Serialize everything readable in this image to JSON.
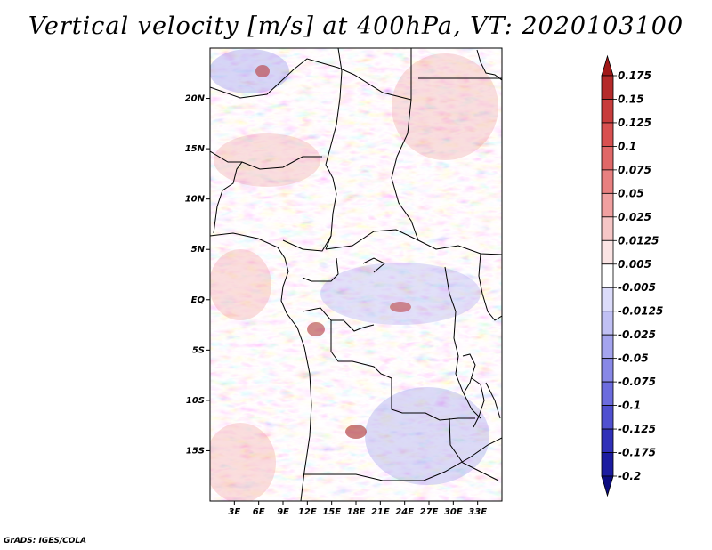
{
  "title": "Vertical velocity [m/s] at 400hPa, VT: 2020103100",
  "map": {
    "projection": "lat-lon",
    "lon_range": [
      0,
      36
    ],
    "lat_range": [
      -20,
      25
    ],
    "lat_ticks": [
      {
        "value": 20,
        "label": "20N"
      },
      {
        "value": 15,
        "label": "15N"
      },
      {
        "value": 10,
        "label": "10N"
      },
      {
        "value": 5,
        "label": "5N"
      },
      {
        "value": 0,
        "label": "EQ"
      },
      {
        "value": -5,
        "label": "5S"
      },
      {
        "value": -10,
        "label": "10S"
      },
      {
        "value": -15,
        "label": "15S"
      }
    ],
    "lon_ticks": [
      {
        "value": 3,
        "label": "3E"
      },
      {
        "value": 6,
        "label": "6E"
      },
      {
        "value": 9,
        "label": "9E"
      },
      {
        "value": 12,
        "label": "12E"
      },
      {
        "value": 15,
        "label": "15E"
      },
      {
        "value": 18,
        "label": "18E"
      },
      {
        "value": 21,
        "label": "21E"
      },
      {
        "value": 24,
        "label": "24E"
      },
      {
        "value": 27,
        "label": "27E"
      },
      {
        "value": 30,
        "label": "30E"
      },
      {
        "value": 33,
        "label": "33E"
      }
    ],
    "field": "vertical velocity",
    "units": "m/s",
    "level": "400hPa"
  },
  "colorbar": {
    "labels": [
      "0.175",
      "0.15",
      "0.125",
      "0.1",
      "0.075",
      "0.05",
      "0.025",
      "0.0125",
      "0.005",
      "-0.005",
      "-0.0125",
      "-0.025",
      "-0.05",
      "-0.075",
      "-0.1",
      "-0.125",
      "-0.175",
      "-0.2"
    ],
    "colors": [
      "#a01818",
      "#b52a2a",
      "#c83c3c",
      "#d85050",
      "#e06868",
      "#e88080",
      "#f0a0a0",
      "#f6c6c6",
      "#fbe4e4",
      "#ffffff",
      "#dcdcfa",
      "#c0c0f4",
      "#a4a4ee",
      "#8888e6",
      "#6c6cde",
      "#5050d0",
      "#3030b8",
      "#1c1ca0",
      "#0c0c80"
    ]
  },
  "credit": "GrADS: IGES/COLA"
}
